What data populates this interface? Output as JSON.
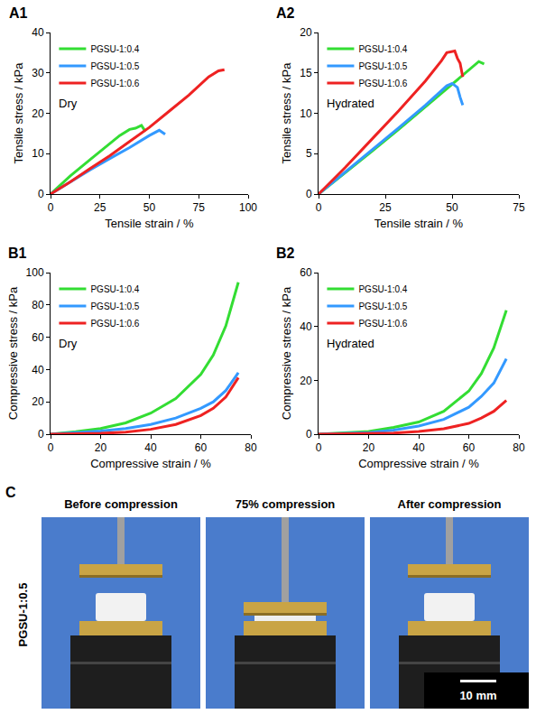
{
  "chart_data": [
    {
      "panel": "A1",
      "type": "line",
      "annotation": "Dry",
      "x_label": "Tensile strain / %",
      "y_label": "Tensile stress / kPa",
      "xlim": [
        0,
        100
      ],
      "xticks": [
        0,
        25,
        50,
        75,
        100
      ],
      "ylim": [
        0,
        40
      ],
      "yticks": [
        0,
        10,
        20,
        30,
        40
      ],
      "grid": false,
      "legend": "top left",
      "series": [
        {
          "name": "PGSU-1:0.4",
          "color": "#33dd33",
          "x": [
            0,
            10,
            20,
            30,
            35,
            40,
            43,
            46,
            48
          ],
          "values": [
            0,
            4.5,
            8.5,
            12.5,
            14.5,
            16,
            16.3,
            17,
            15.5
          ]
        },
        {
          "name": "PGSU-1:0.5",
          "color": "#3399ff",
          "x": [
            0,
            10,
            20,
            30,
            40,
            50,
            55,
            58
          ],
          "values": [
            0,
            3,
            6,
            8.8,
            11.5,
            14.5,
            15.8,
            14.8
          ]
        },
        {
          "name": "PGSU-1:0.6",
          "color": "#ee2222",
          "x": [
            0,
            10,
            20,
            30,
            40,
            50,
            60,
            70,
            80,
            85,
            88
          ],
          "values": [
            0,
            3,
            6.3,
            9.5,
            13,
            16.5,
            20.5,
            24.5,
            29,
            30.5,
            30.8
          ]
        }
      ]
    },
    {
      "panel": "A2",
      "type": "line",
      "annotation": "Hydrated",
      "x_label": "Tensile strain / %",
      "y_label": "Tensile stress / kPa",
      "xlim": [
        0,
        75
      ],
      "xticks": [
        0,
        25,
        50,
        75
      ],
      "ylim": [
        0,
        20
      ],
      "yticks": [
        0,
        5,
        10,
        15,
        20
      ],
      "grid": false,
      "legend": "top left",
      "series": [
        {
          "name": "PGSU-1:0.4",
          "color": "#33dd33",
          "x": [
            0,
            10,
            20,
            30,
            40,
            50,
            55,
            60,
            62
          ],
          "values": [
            0,
            2.6,
            5.3,
            8,
            10.8,
            13.5,
            15,
            16.4,
            16.1
          ]
        },
        {
          "name": "PGSU-1:0.5",
          "color": "#3399ff",
          "x": [
            0,
            10,
            20,
            30,
            40,
            48,
            50,
            52,
            53,
            54
          ],
          "values": [
            0,
            2.7,
            5.5,
            8.2,
            11,
            13.4,
            13.7,
            13.2,
            12,
            11
          ]
        },
        {
          "name": "PGSU-1:0.6",
          "color": "#ee2222",
          "x": [
            0,
            10,
            20,
            30,
            40,
            46,
            48,
            51,
            52,
            53,
            54
          ],
          "values": [
            0,
            3.3,
            6.8,
            10.3,
            14,
            16.5,
            17.5,
            17.7,
            16.8,
            16.2,
            14.5
          ]
        }
      ]
    },
    {
      "panel": "B1",
      "type": "line",
      "annotation": "Dry",
      "x_label": "Compressive strain / %",
      "y_label": "Compressive stress / kPa",
      "xlim": [
        0,
        80
      ],
      "xticks": [
        0,
        20,
        40,
        60,
        80
      ],
      "ylim": [
        0,
        100
      ],
      "yticks": [
        0,
        20,
        40,
        60,
        80,
        100
      ],
      "grid": false,
      "legend": "top left",
      "series": [
        {
          "name": "PGSU-1:0.4",
          "color": "#33dd33",
          "x": [
            0,
            10,
            20,
            30,
            40,
            50,
            60,
            65,
            70,
            75
          ],
          "values": [
            0,
            1.5,
            3.5,
            7,
            13,
            22,
            37,
            49,
            67,
            94
          ]
        },
        {
          "name": "PGSU-1:0.5",
          "color": "#3399ff",
          "x": [
            0,
            10,
            20,
            30,
            40,
            50,
            60,
            65,
            70,
            75
          ],
          "values": [
            0,
            0.8,
            2,
            3.5,
            6,
            10,
            16,
            20,
            27,
            38
          ]
        },
        {
          "name": "PGSU-1:0.6",
          "color": "#ee2222",
          "x": [
            0,
            20,
            30,
            40,
            50,
            60,
            65,
            70,
            75
          ],
          "values": [
            0,
            0.5,
            1.2,
            3,
            6,
            11.5,
            16,
            23,
            35
          ]
        }
      ]
    },
    {
      "panel": "B2",
      "type": "line",
      "annotation": "Hydrated",
      "x_label": "Compressive strain / %",
      "y_label": "Compressive stress / kPa",
      "xlim": [
        0,
        80
      ],
      "xticks": [
        0,
        20,
        40,
        60,
        80
      ],
      "ylim": [
        0,
        60
      ],
      "yticks": [
        0,
        20,
        40,
        60
      ],
      "grid": false,
      "legend": "top left",
      "series": [
        {
          "name": "PGSU-1:0.4",
          "color": "#33dd33",
          "x": [
            0,
            20,
            30,
            40,
            50,
            60,
            65,
            70,
            75
          ],
          "values": [
            0,
            1,
            2.5,
            4.5,
            8.5,
            16,
            22.5,
            32,
            46
          ]
        },
        {
          "name": "PGSU-1:0.5",
          "color": "#3399ff",
          "x": [
            0,
            20,
            30,
            40,
            50,
            60,
            65,
            70,
            75
          ],
          "values": [
            0,
            0.6,
            1.5,
            3,
            5.5,
            10,
            14,
            19,
            28
          ]
        },
        {
          "name": "PGSU-1:0.6",
          "color": "#ee2222",
          "x": [
            0,
            30,
            40,
            50,
            60,
            65,
            70,
            75
          ],
          "values": [
            0,
            0.4,
            1,
            2,
            4,
            6,
            8.5,
            12.5
          ]
        }
      ]
    }
  ],
  "photo_panel": {
    "panel": "C",
    "row_label": "PGSU-1:0.5",
    "captions": [
      "Before compression",
      "75% compression",
      "After compression"
    ],
    "scale_bar": "10 mm"
  }
}
